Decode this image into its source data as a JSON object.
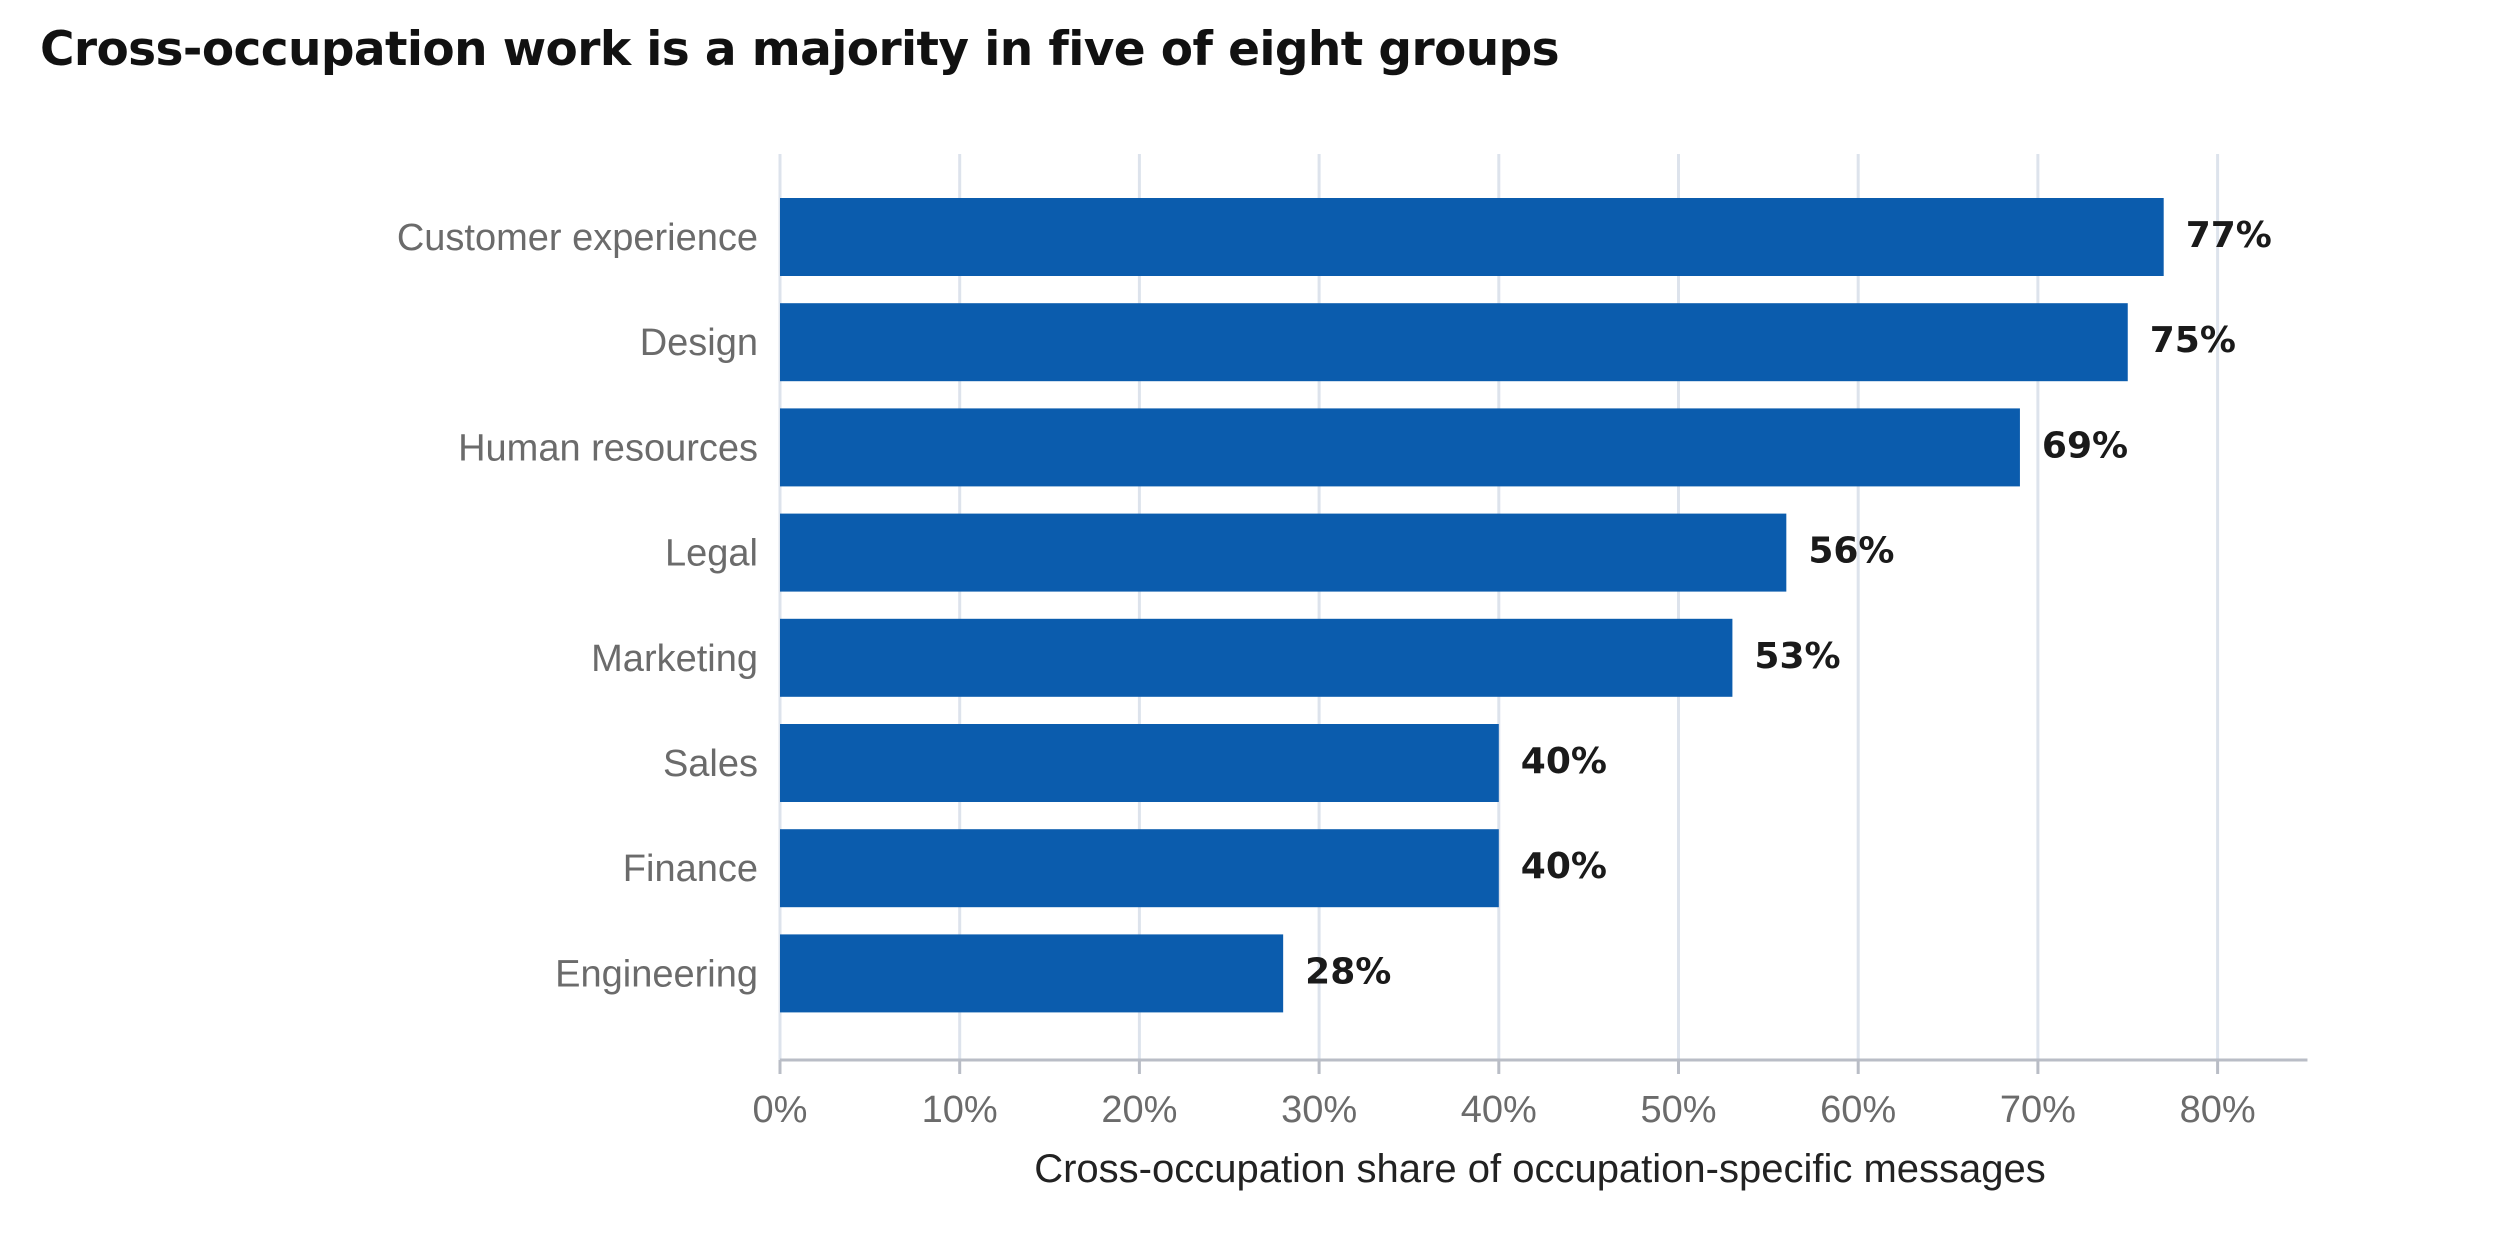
{
  "chart_data": {
    "type": "bar",
    "orientation": "horizontal",
    "title": "Cross-occupation work is a majority in five of eight groups",
    "xlabel": "Cross-occupation share of occupation-specific messages",
    "ylabel": "",
    "categories": [
      "Customer experience",
      "Design",
      "Human resources",
      "Legal",
      "Marketing",
      "Sales",
      "Finance",
      "Engineering"
    ],
    "values": [
      77,
      75,
      69,
      56,
      53,
      40,
      40,
      28
    ],
    "value_labels": [
      "77%",
      "75%",
      "69%",
      "56%",
      "53%",
      "40%",
      "40%",
      "28%"
    ],
    "xlim": [
      0,
      85
    ],
    "ticks": [
      0,
      10,
      20,
      30,
      40,
      50,
      60,
      70,
      80
    ],
    "tick_labels": [
      "0%",
      "10%",
      "20%",
      "30%",
      "40%",
      "50%",
      "60%",
      "70%",
      "80%"
    ],
    "grid": "vertical",
    "legend": "none",
    "bar_color": "#0b5cad",
    "grid_color": "#dde3ec",
    "axis_color": "#b9bdc6"
  }
}
